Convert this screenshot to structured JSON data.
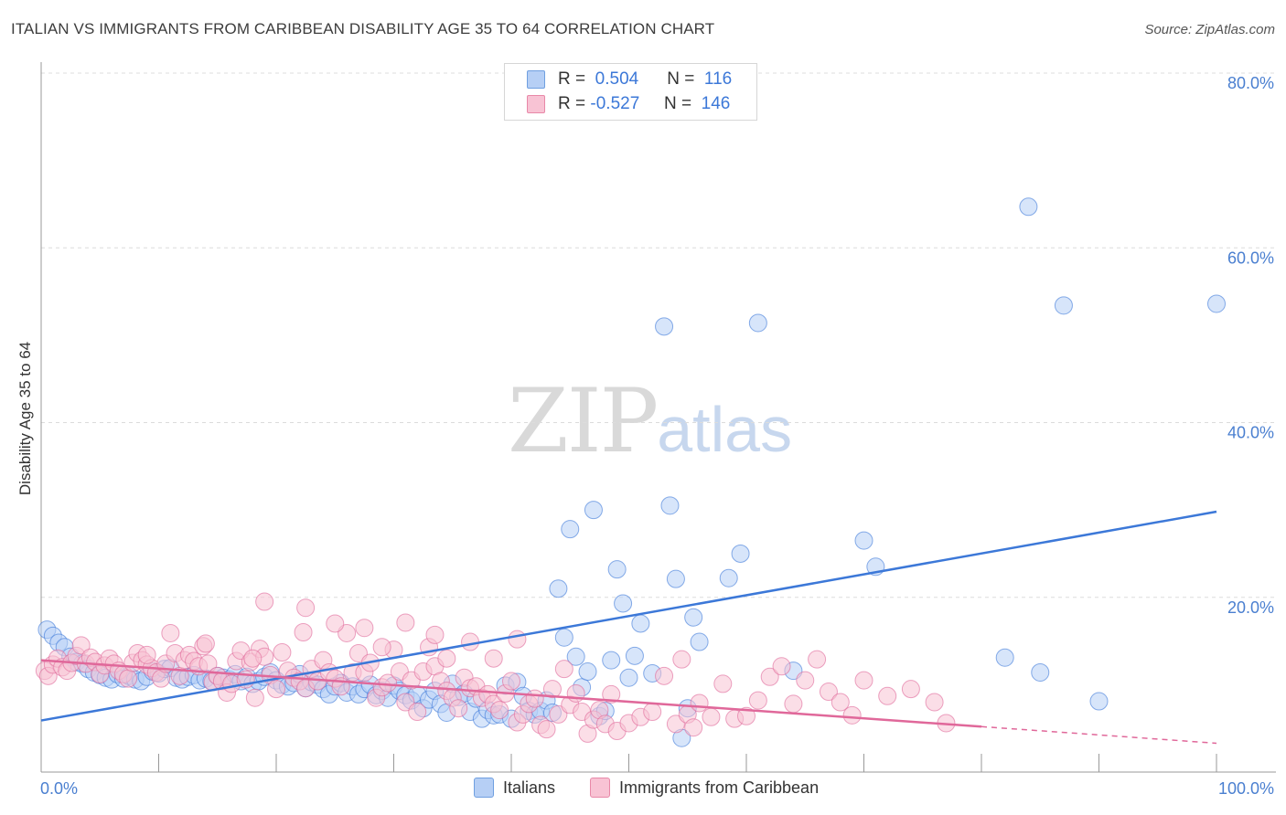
{
  "title": "ITALIAN VS IMMIGRANTS FROM CARIBBEAN DISABILITY AGE 35 TO 64 CORRELATION CHART",
  "source": "Source: ZipAtlas.com",
  "watermark": {
    "zip": "ZIP",
    "atlas": "atlas"
  },
  "legend": {
    "rows": [
      {
        "r_label": "R =",
        "r_value": "0.504",
        "n_label": "N =",
        "n_value": "116",
        "fill": "#b6cff5",
        "stroke": "#6f9fe0"
      },
      {
        "r_label": "R =",
        "r_value": "-0.527",
        "n_label": "N =",
        "n_value": "146",
        "fill": "#f8c3d4",
        "stroke": "#e888a8"
      }
    ]
  },
  "bottom_legend": [
    {
      "label": "Italians",
      "fill": "#b6cff5",
      "stroke": "#6f9fe0"
    },
    {
      "label": "Immigrants from Caribbean",
      "fill": "#f8c3d4",
      "stroke": "#e888a8"
    }
  ],
  "chart_data": {
    "type": "scatter",
    "title": "ITALIAN VS IMMIGRANTS FROM CARIBBEAN DISABILITY AGE 35 TO 64 CORRELATION CHART",
    "xlabel": "",
    "ylabel": "Disability Age 35 to 64",
    "xlim": [
      0,
      100
    ],
    "ylim": [
      0,
      80
    ],
    "x_tick_labels": [
      "0.0%",
      "100.0%"
    ],
    "y_ticks": [
      20,
      40,
      60,
      80
    ],
    "y_tick_labels": [
      "20.0%",
      "40.0%",
      "60.0%",
      "80.0%"
    ],
    "grid": true,
    "series": [
      {
        "name": "Italians",
        "color": "#3c78d8",
        "fill": "#b6cff5",
        "trend": {
          "x": [
            0,
            100
          ],
          "y": [
            5.9,
            29.8
          ]
        },
        "points": [
          [
            0.5,
            16.3
          ],
          [
            1,
            15.6
          ],
          [
            1.5,
            14.8
          ],
          [
            2,
            14.3
          ],
          [
            2.5,
            13.2
          ],
          [
            3,
            12.6
          ],
          [
            3.5,
            12.4
          ],
          [
            4,
            11.8
          ],
          [
            4.5,
            11.4
          ],
          [
            5,
            11.1
          ],
          [
            5.5,
            10.8
          ],
          [
            6,
            10.6
          ],
          [
            6.5,
            11.2
          ],
          [
            7,
            10.7
          ],
          [
            7.5,
            11.0
          ],
          [
            8,
            10.6
          ],
          [
            8.5,
            10.4
          ],
          [
            9,
            10.9
          ],
          [
            9.5,
            11.5
          ],
          [
            10,
            11.3
          ],
          [
            10.5,
            11.8
          ],
          [
            11,
            11.9
          ],
          [
            11.5,
            10.8
          ],
          [
            12,
            10.6
          ],
          [
            12.5,
            10.9
          ],
          [
            13,
            11.1
          ],
          [
            13.5,
            10.5
          ],
          [
            14,
            10.7
          ],
          [
            14.5,
            10.4
          ],
          [
            15,
            11.0
          ],
          [
            15.5,
            10.8
          ],
          [
            16,
            10.6
          ],
          [
            16.5,
            11.2
          ],
          [
            17,
            10.4
          ],
          [
            17.5,
            10.9
          ],
          [
            18,
            10.1
          ],
          [
            18.5,
            10.4
          ],
          [
            19,
            10.9
          ],
          [
            19.5,
            11.4
          ],
          [
            20,
            10.5
          ],
          [
            20.5,
            10.0
          ],
          [
            21,
            9.8
          ],
          [
            21.5,
            10.2
          ],
          [
            22,
            11.2
          ],
          [
            22.5,
            9.6
          ],
          [
            23,
            10.3
          ],
          [
            23.5,
            10.0
          ],
          [
            24,
            9.5
          ],
          [
            24.5,
            8.9
          ],
          [
            25,
            9.8
          ],
          [
            25.5,
            10.2
          ],
          [
            26,
            9.1
          ],
          [
            26.5,
            9.8
          ],
          [
            27,
            8.9
          ],
          [
            27.5,
            9.5
          ],
          [
            28,
            10.0
          ],
          [
            28.5,
            8.8
          ],
          [
            29,
            9.3
          ],
          [
            29.5,
            8.5
          ],
          [
            30,
            9.9
          ],
          [
            30.5,
            9.3
          ],
          [
            31,
            8.8
          ],
          [
            31.5,
            8.2
          ],
          [
            32,
            8.9
          ],
          [
            32.5,
            7.3
          ],
          [
            33,
            8.3
          ],
          [
            33.5,
            9.3
          ],
          [
            34,
            7.8
          ],
          [
            34.5,
            6.8
          ],
          [
            35,
            10.1
          ],
          [
            35.5,
            8.6
          ],
          [
            36,
            9.0
          ],
          [
            36.5,
            6.9
          ],
          [
            37,
            8.4
          ],
          [
            37.5,
            6.1
          ],
          [
            38,
            7.1
          ],
          [
            38.5,
            6.5
          ],
          [
            39,
            6.6
          ],
          [
            39.5,
            9.9
          ],
          [
            40,
            6.1
          ],
          [
            40.5,
            10.3
          ],
          [
            41,
            8.7
          ],
          [
            41.5,
            7.0
          ],
          [
            42,
            6.6
          ],
          [
            42.5,
            7.0
          ],
          [
            43,
            8.2
          ],
          [
            43.5,
            6.8
          ],
          [
            44,
            21.0
          ],
          [
            44.5,
            15.4
          ],
          [
            45,
            27.8
          ],
          [
            45.5,
            13.2
          ],
          [
            46,
            9.7
          ],
          [
            46.5,
            11.5
          ],
          [
            47,
            30.0
          ],
          [
            47.5,
            6.4
          ],
          [
            48,
            7.0
          ],
          [
            48.5,
            12.8
          ],
          [
            49,
            23.2
          ],
          [
            49.5,
            19.3
          ],
          [
            50,
            10.8
          ],
          [
            50.5,
            13.3
          ],
          [
            51,
            17.0
          ],
          [
            52,
            11.3
          ],
          [
            53,
            51.0
          ],
          [
            53.5,
            30.5
          ],
          [
            54,
            22.1
          ],
          [
            54.5,
            3.9
          ],
          [
            55,
            7.3
          ],
          [
            55.5,
            17.7
          ],
          [
            56,
            14.9
          ],
          [
            58.5,
            22.2
          ],
          [
            59.5,
            25.0
          ],
          [
            61,
            51.4
          ],
          [
            64,
            11.6
          ],
          [
            70,
            26.5
          ],
          [
            71,
            23.5
          ],
          [
            82,
            13.1
          ],
          [
            84,
            64.7
          ],
          [
            85,
            11.4
          ],
          [
            87,
            53.4
          ],
          [
            90,
            8.1
          ],
          [
            100,
            53.6
          ]
        ]
      },
      {
        "name": "Immigrants from Caribbean",
        "color": "#e0689a",
        "fill": "#f8c3d4",
        "trend": {
          "x": [
            0,
            80
          ],
          "y": [
            12.8,
            5.2
          ]
        },
        "trend_dashed": {
          "x": [
            80,
            100
          ],
          "y": [
            5.2,
            3.3
          ]
        },
        "points": [
          [
            0.3,
            11.6
          ],
          [
            0.6,
            11.0
          ],
          [
            1,
            12.3
          ],
          [
            1.4,
            13.0
          ],
          [
            1.8,
            12.0
          ],
          [
            2.2,
            11.6
          ],
          [
            2.6,
            12.5
          ],
          [
            3,
            13.3
          ],
          [
            3.4,
            14.5
          ],
          [
            3.8,
            12.4
          ],
          [
            4.2,
            13.1
          ],
          [
            4.6,
            12.6
          ],
          [
            5,
            11.2
          ],
          [
            5.4,
            12.2
          ],
          [
            5.8,
            13.0
          ],
          [
            6.2,
            12.4
          ],
          [
            6.6,
            11.6
          ],
          [
            7,
            11.2
          ],
          [
            7.4,
            10.7
          ],
          [
            7.8,
            12.5
          ],
          [
            8.2,
            13.6
          ],
          [
            8.6,
            12.8
          ],
          [
            9,
            12.3
          ],
          [
            9.4,
            11.9
          ],
          [
            9.8,
            11.4
          ],
          [
            10.2,
            10.7
          ],
          [
            10.6,
            12.4
          ],
          [
            11,
            15.9
          ],
          [
            11.4,
            13.6
          ],
          [
            11.8,
            11.0
          ],
          [
            12.2,
            12.8
          ],
          [
            12.6,
            13.4
          ],
          [
            13,
            12.7
          ],
          [
            13.4,
            12.1
          ],
          [
            13.8,
            14.4
          ],
          [
            14.2,
            12.4
          ],
          [
            14.6,
            10.3
          ],
          [
            15,
            11.0
          ],
          [
            15.4,
            10.4
          ],
          [
            15.8,
            9.1
          ],
          [
            16.2,
            10.1
          ],
          [
            16.6,
            12.7
          ],
          [
            17,
            13.9
          ],
          [
            17.4,
            10.6
          ],
          [
            17.8,
            12.6
          ],
          [
            18.2,
            8.5
          ],
          [
            18.6,
            14.1
          ],
          [
            19,
            13.2
          ],
          [
            19.5,
            11.1
          ],
          [
            20,
            9.5
          ],
          [
            20.5,
            13.7
          ],
          [
            21,
            11.6
          ],
          [
            21.5,
            10.8
          ],
          [
            22,
            10.4
          ],
          [
            22.5,
            9.6
          ],
          [
            23,
            11.8
          ],
          [
            23.5,
            10.4
          ],
          [
            24,
            12.8
          ],
          [
            24.5,
            11.4
          ],
          [
            25,
            10.7
          ],
          [
            25.5,
            9.8
          ],
          [
            26,
            15.9
          ],
          [
            26.5,
            11.4
          ],
          [
            27,
            13.6
          ],
          [
            27.5,
            11.4
          ],
          [
            28,
            12.5
          ],
          [
            28.5,
            8.5
          ],
          [
            29,
            9.7
          ],
          [
            29.5,
            10.2
          ],
          [
            30,
            14.0
          ],
          [
            30.5,
            11.5
          ],
          [
            31,
            8.0
          ],
          [
            31.5,
            10.5
          ],
          [
            32,
            6.9
          ],
          [
            32.5,
            11.5
          ],
          [
            33,
            14.3
          ],
          [
            33.5,
            12.1
          ],
          [
            34,
            10.4
          ],
          [
            34.5,
            9.3
          ],
          [
            35,
            8.5
          ],
          [
            35.5,
            7.3
          ],
          [
            36,
            10.8
          ],
          [
            36.5,
            9.6
          ],
          [
            37,
            9.8
          ],
          [
            37.5,
            8.5
          ],
          [
            38,
            8.9
          ],
          [
            38.5,
            7.8
          ],
          [
            39,
            7.1
          ],
          [
            39.5,
            9.0
          ],
          [
            40,
            10.4
          ],
          [
            40.5,
            5.7
          ],
          [
            41,
            6.6
          ],
          [
            41.5,
            7.8
          ],
          [
            42,
            8.4
          ],
          [
            42.5,
            5.4
          ],
          [
            43,
            4.9
          ],
          [
            43.5,
            9.5
          ],
          [
            44,
            6.6
          ],
          [
            44.5,
            11.8
          ],
          [
            45,
            7.7
          ],
          [
            45.5,
            9.0
          ],
          [
            46,
            6.9
          ],
          [
            46.5,
            4.4
          ],
          [
            47,
            6.0
          ],
          [
            47.5,
            7.1
          ],
          [
            48,
            5.5
          ],
          [
            48.5,
            8.9
          ],
          [
            49,
            4.7
          ],
          [
            50,
            5.6
          ],
          [
            51,
            6.3
          ],
          [
            52,
            6.9
          ],
          [
            53,
            11.0
          ],
          [
            54,
            5.5
          ],
          [
            54.5,
            12.9
          ],
          [
            55,
            6.6
          ],
          [
            55.5,
            5.1
          ],
          [
            56,
            7.9
          ],
          [
            57,
            6.3
          ],
          [
            58,
            10.1
          ],
          [
            59,
            6.1
          ],
          [
            60,
            6.4
          ],
          [
            61,
            8.2
          ],
          [
            62,
            10.9
          ],
          [
            63,
            12.1
          ],
          [
            64,
            7.8
          ],
          [
            65,
            10.5
          ],
          [
            66,
            12.9
          ],
          [
            67,
            9.2
          ],
          [
            68,
            8.0
          ],
          [
            69,
            6.5
          ],
          [
            70,
            10.5
          ],
          [
            72,
            8.7
          ],
          [
            74,
            9.5
          ],
          [
            76,
            8.0
          ],
          [
            77,
            5.6
          ],
          [
            19,
            19.5
          ],
          [
            22.5,
            18.8
          ],
          [
            33.5,
            15.7
          ],
          [
            36.5,
            14.9
          ],
          [
            40.5,
            15.2
          ],
          [
            22.3,
            16.0
          ],
          [
            25,
            17.0
          ],
          [
            27.5,
            16.5
          ],
          [
            31,
            17.1
          ],
          [
            9,
            13.4
          ],
          [
            14,
            14.7
          ],
          [
            18,
            13.0
          ],
          [
            29,
            14.3
          ],
          [
            34.5,
            13.0
          ],
          [
            38.5,
            13.0
          ]
        ]
      }
    ]
  }
}
